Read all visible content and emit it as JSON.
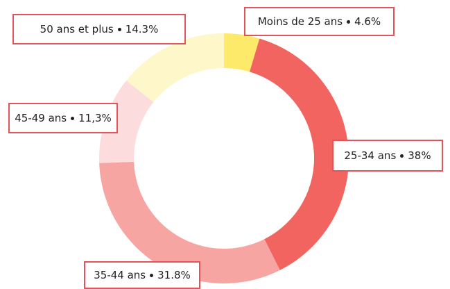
{
  "chart_data": {
    "type": "donut",
    "categories": [
      "Moins de 25 ans",
      "25-34 ans",
      "35-44 ans",
      "45-49 ans",
      "50 ans et plus"
    ],
    "values": [
      4.6,
      38,
      31.8,
      11.3,
      14.3
    ],
    "value_labels": [
      "4.6%",
      "38%",
      "31.8%",
      "11,3%",
      "14.3%"
    ],
    "colors": [
      "#fde96a",
      "#f2645f",
      "#f6a5a2",
      "#fddcdd",
      "#fef7c9"
    ]
  }
}
